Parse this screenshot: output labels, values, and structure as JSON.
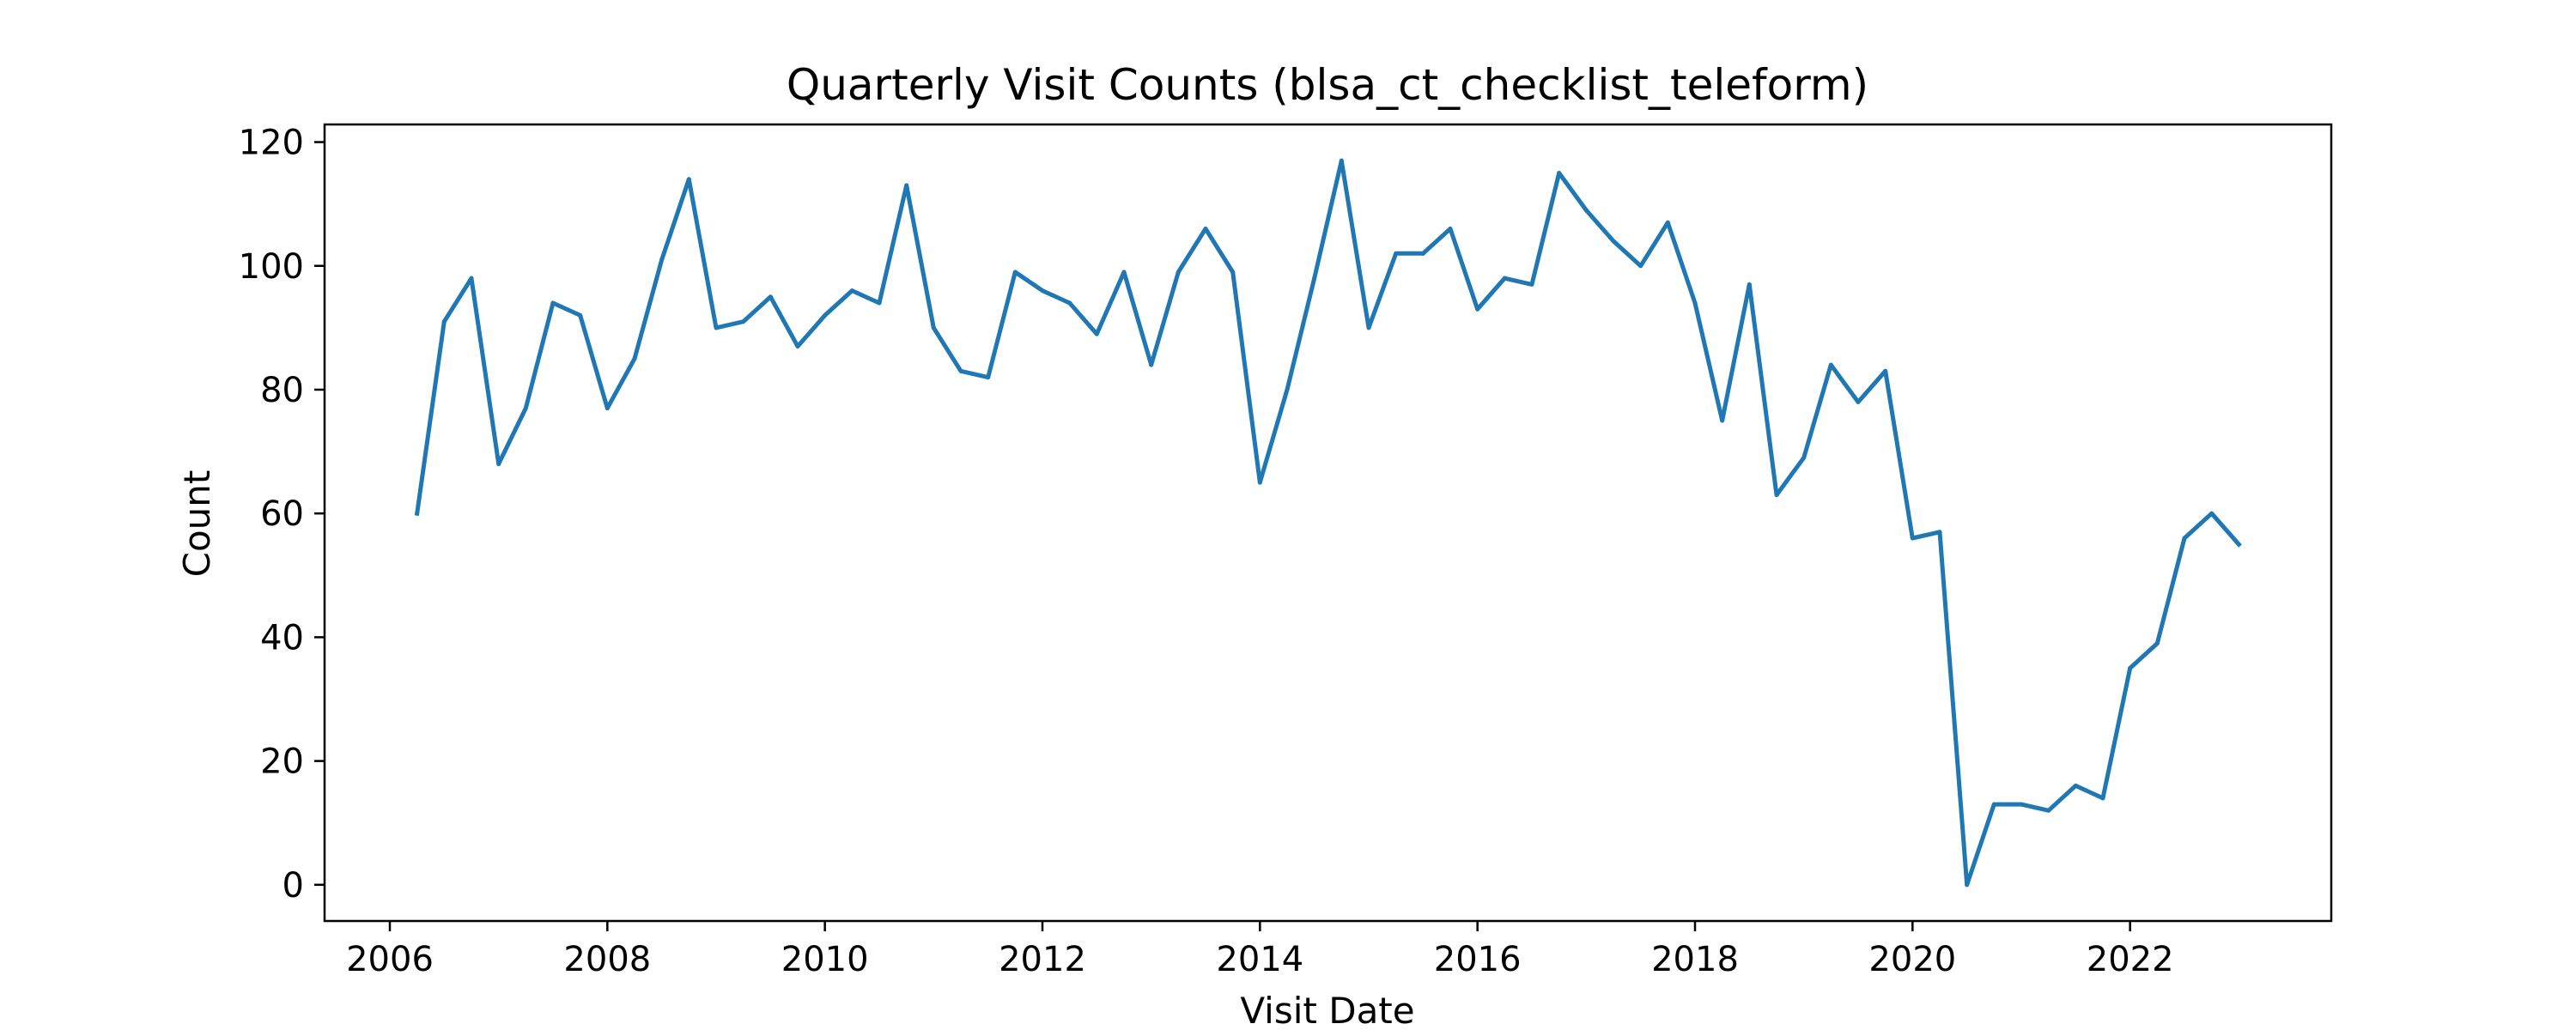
{
  "chart_data": {
    "type": "line",
    "title": "Quarterly Visit Counts (blsa_ct_checklist_teleform)",
    "xlabel": "Visit Date",
    "ylabel": "Count",
    "xlim": [
      2005.4,
      2023.85
    ],
    "ylim": [
      -5.85,
      122.85
    ],
    "x_ticks": [
      2006,
      2008,
      2010,
      2012,
      2014,
      2016,
      2018,
      2020,
      2022
    ],
    "y_ticks": [
      0,
      20,
      40,
      60,
      80,
      100,
      120
    ],
    "grid": false,
    "legend": "none",
    "colors": {
      "line": "#1f77b4",
      "axes": "#000000",
      "background": "#ffffff"
    },
    "series": [
      {
        "x": [
          "2006-04-01",
          "2006-07-01",
          "2006-10-01",
          "2007-01-01",
          "2007-04-01",
          "2007-07-01",
          "2007-10-01",
          "2008-01-01",
          "2008-04-01",
          "2008-07-01",
          "2008-10-01",
          "2009-01-01",
          "2009-04-01",
          "2009-07-01",
          "2009-10-01",
          "2010-01-01",
          "2010-04-01",
          "2010-07-01",
          "2010-10-01",
          "2011-01-01",
          "2011-04-01",
          "2011-07-01",
          "2011-10-01",
          "2012-01-01",
          "2012-04-01",
          "2012-07-01",
          "2012-10-01",
          "2013-01-01",
          "2013-04-01",
          "2013-07-01",
          "2013-10-01",
          "2014-01-01",
          "2014-04-01",
          "2014-07-01",
          "2014-10-01",
          "2015-01-01",
          "2015-04-01",
          "2015-07-01",
          "2015-10-01",
          "2016-01-01",
          "2016-04-01",
          "2016-07-01",
          "2016-10-01",
          "2017-01-01",
          "2017-04-01",
          "2017-07-01",
          "2017-10-01",
          "2018-01-01",
          "2018-04-01",
          "2018-07-01",
          "2018-10-01",
          "2019-01-01",
          "2019-04-01",
          "2019-07-01",
          "2019-10-01",
          "2020-01-01",
          "2020-04-01",
          "2020-07-01",
          "2020-10-01",
          "2021-01-01",
          "2021-04-01",
          "2021-07-01",
          "2021-10-01",
          "2022-01-01",
          "2022-04-01",
          "2022-07-01",
          "2022-10-01",
          "2023-01-01"
        ],
        "values": [
          60,
          91,
          98,
          68,
          77,
          94,
          92,
          77,
          85,
          101,
          114,
          90,
          91,
          95,
          87,
          92,
          96,
          94,
          113,
          90,
          83,
          82,
          99,
          96,
          94,
          89,
          99,
          84,
          99,
          106,
          99,
          65,
          80,
          98,
          117,
          90,
          102,
          102,
          106,
          93,
          98,
          97,
          115,
          109,
          104,
          100,
          107,
          94,
          75,
          97,
          63,
          69,
          84,
          78,
          83,
          56,
          57,
          0,
          13,
          13,
          12,
          16,
          14,
          35,
          39,
          56,
          60,
          55
        ]
      }
    ]
  }
}
